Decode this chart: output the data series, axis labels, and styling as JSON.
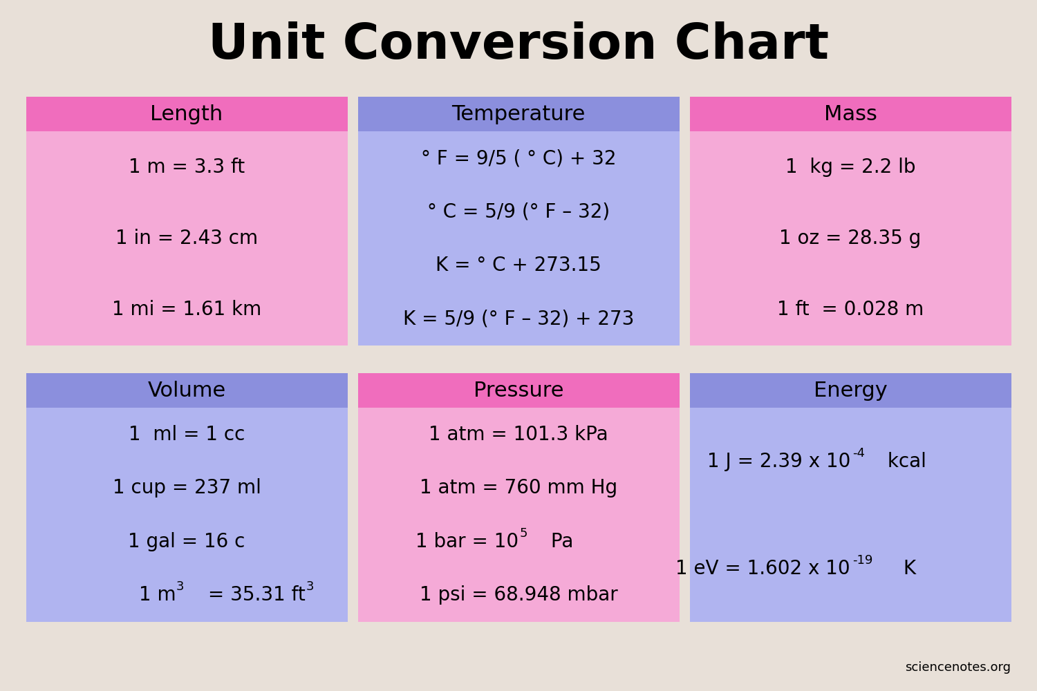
{
  "title": "Unit Conversion Chart",
  "title_fontsize": 52,
  "bg_color": "#e8e0d8",
  "watermark": "sciencenotes.org",
  "panels": [
    {
      "label": "Length",
      "header_color": "#f06dbd",
      "body_color": "#f5aad7",
      "row": 0,
      "col": 0,
      "lines": [
        "1 m = 3.3 ft",
        "1 in = 2.43 cm",
        "1 mi = 1.61 km"
      ],
      "superscripts": [
        null,
        null,
        null
      ]
    },
    {
      "label": "Temperature",
      "header_color": "#8b8fdd",
      "body_color": "#b0b4f0",
      "row": 0,
      "col": 1,
      "lines": [
        "° F = 9/5 ( ° C) + 32",
        "° C = 5/9 (° F – 32)",
        "K = ° C + 273.15",
        "K = 5/9 (° F – 32) + 273"
      ],
      "superscripts": [
        null,
        null,
        null,
        null
      ]
    },
    {
      "label": "Mass",
      "header_color": "#f06dbd",
      "body_color": "#f5aad7",
      "row": 0,
      "col": 2,
      "lines": [
        "1  kg = 2.2 lb",
        "1 oz = 28.35 g",
        "1 ft  = 0.028 m"
      ],
      "superscripts": [
        null,
        null,
        null
      ]
    },
    {
      "label": "Volume",
      "header_color": "#8b8fdd",
      "body_color": "#b0b4f0",
      "row": 1,
      "col": 0,
      "lines": [
        "1  ml = 1 cc",
        "1 cup = 237 ml",
        "1 gal = 16 c",
        "1 m³ = 35.31 ft³"
      ],
      "superscripts": [
        null,
        null,
        null,
        null
      ]
    },
    {
      "label": "Pressure",
      "header_color": "#f06dbd",
      "body_color": "#f5aad7",
      "row": 1,
      "col": 1,
      "lines": [
        "1 atm = 101.3 kPa",
        "1 atm = 760 mm Hg",
        "1 bar = 10⁵ Pa",
        "1 psi = 68.948 mbar"
      ],
      "superscripts": [
        null,
        null,
        "5",
        null
      ]
    },
    {
      "label": "Energy",
      "header_color": "#8b8fdd",
      "body_color": "#b0b4f0",
      "row": 1,
      "col": 2,
      "lines": [
        "1 J = 2.39 x 10⁻⁴ kcal",
        "1 eV = 1.602 x 10⁻¹⁹ K"
      ],
      "superscripts": [
        null,
        null
      ]
    }
  ]
}
